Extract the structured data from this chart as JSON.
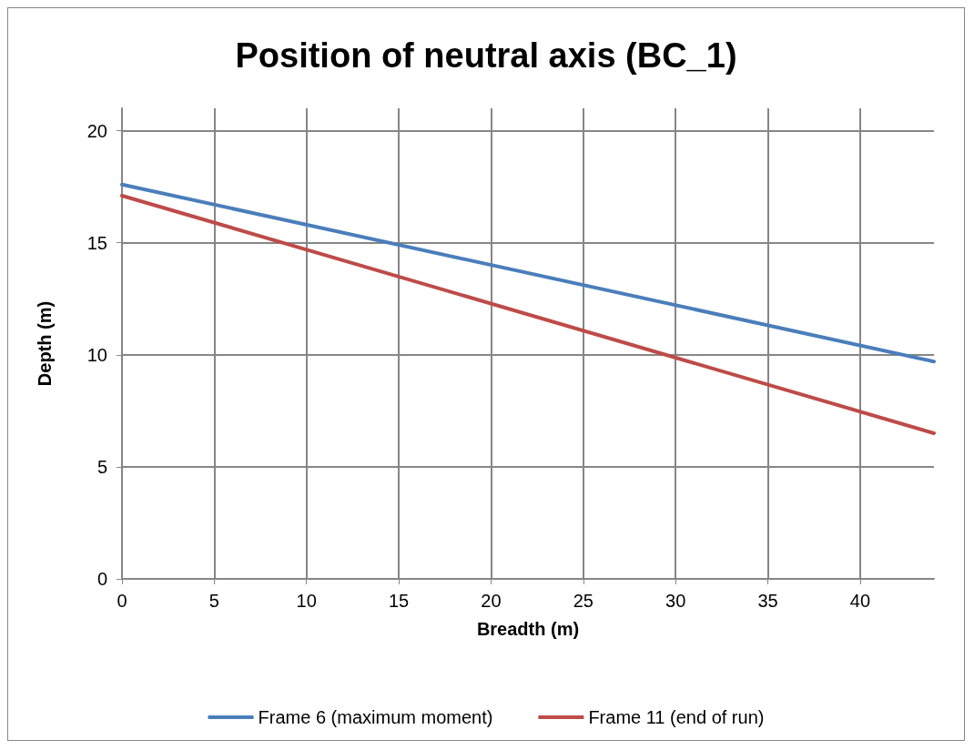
{
  "chart_data": {
    "type": "line",
    "title": "Position of neutral axis (BC_1)",
    "xlabel": "Breadth (m)",
    "ylabel": "Depth (m)",
    "x": [
      0,
      44
    ],
    "series": [
      {
        "name": "Frame 6 (maximum moment)",
        "color": "#4a7ebb",
        "values": [
          17.6,
          9.7
        ]
      },
      {
        "name": "Frame 11 (end of run)",
        "color": "#be4b48",
        "values": [
          17.1,
          6.5
        ]
      }
    ],
    "xlim": [
      0,
      44
    ],
    "xticks": [
      0,
      5,
      10,
      15,
      20,
      25,
      30,
      35,
      40
    ],
    "ylim": [
      0,
      21
    ],
    "yticks": [
      0,
      5,
      10,
      15,
      20
    ],
    "grid": true,
    "legend": "bottom",
    "marker": "none",
    "line_style": "solid"
  }
}
